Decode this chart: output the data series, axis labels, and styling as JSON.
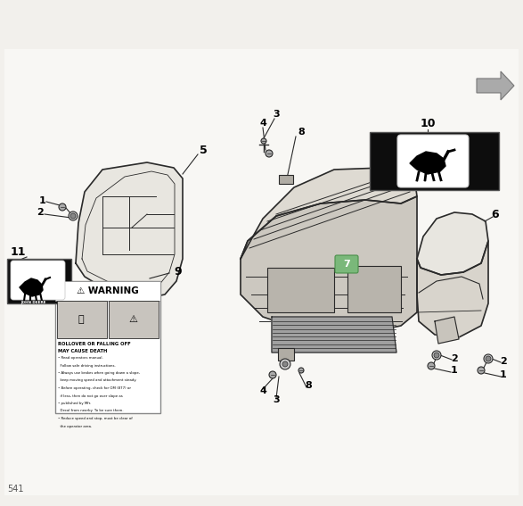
{
  "bg_color": "#f2f0ec",
  "fig_width": 5.87,
  "fig_height": 5.67,
  "dpi": 100,
  "page_number": "541",
  "line_color": "#2a2a2a",
  "light_fill": "#e8e6e0",
  "mid_fill": "#d4d0c8",
  "dark_fill": "#b0aca4",
  "white": "#ffffff",
  "black": "#111111",
  "warning_line1": "ROLLOVER OR FALLING OFF",
  "warning_line2": "MAY CAUSE DEATH",
  "warning_lines": [
    "Read operators manual.",
    "Follow safe driving instructions.",
    "Always use brakes when going down a slope,",
    "keep moving speed and attachment steady.",
    "Before operating, check for OM (877) or",
    "if less, then do not go over slope as",
    "published by Mfr.",
    "Decal from nearby. To be sure them.",
    "Reduce speed and stop, must be clear of",
    "the operator area."
  ]
}
